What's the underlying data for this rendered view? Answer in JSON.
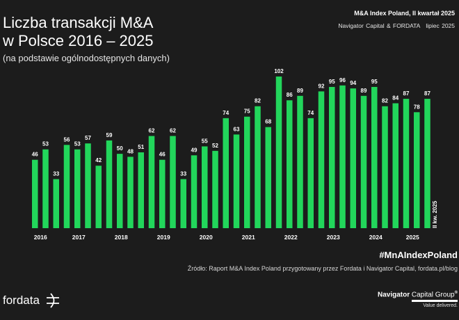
{
  "header": {
    "report_title": "M&A Index Poland, II kwartał 2025",
    "publishers": "Navigator Capital & FORDATA",
    "date": "lipiec 2025"
  },
  "chart_data": {
    "type": "bar",
    "title": "Liczba transakcji M&A\nw Polsce 2016 – 2025",
    "subtitle": "(na podstawie ogólnodostępnych danych)",
    "bar_color": "#22d65b",
    "background": "#1c1c1c",
    "ylim": [
      0,
      102
    ],
    "grid": false,
    "values": [
      46,
      53,
      33,
      56,
      53,
      57,
      42,
      59,
      50,
      48,
      51,
      62,
      46,
      62,
      33,
      49,
      55,
      52,
      74,
      63,
      75,
      82,
      68,
      102,
      86,
      89,
      74,
      92,
      95,
      96,
      94,
      89,
      95,
      82,
      84,
      87,
      78,
      87
    ],
    "year_labels": [
      "2016",
      "2017",
      "2018",
      "2019",
      "2020",
      "2021",
      "2022",
      "2023",
      "2024",
      "2025"
    ],
    "last_bar_annotation": "II kw. 2025"
  },
  "footer": {
    "hashtag": "#MnAIndexPoland",
    "source": "Źródło: Raport M&A Index Poland przygotowany przez Fordata i Navigator Capital, fordata.pl/blog",
    "fordata_logo": "fordata",
    "navigator_name_bold": "Navigator",
    "navigator_name_rest": " Capital Group",
    "navigator_reg": "®",
    "navigator_tagline": "Value delivered."
  }
}
